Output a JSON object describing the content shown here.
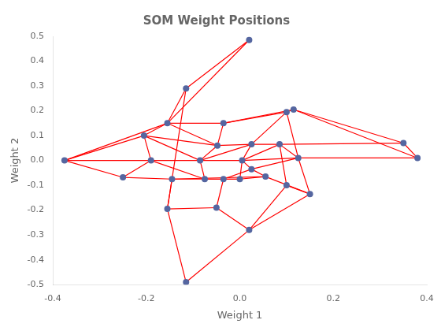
{
  "chart_data": {
    "type": "network",
    "title": "SOM Weight Positions",
    "xlabel": "Weight 1",
    "ylabel": "Weight 2",
    "xlim": [
      -0.4,
      0.4
    ],
    "ylim": [
      -0.5,
      0.5
    ],
    "xticks": [
      -0.4,
      -0.2,
      {
        "value": 0.0,
        "label": "0.0"
      },
      0.2,
      0.4
    ],
    "yticks": [
      -0.5,
      -0.4,
      -0.3,
      -0.2,
      -0.1,
      {
        "value": 0.0,
        "label": "0.0"
      },
      0.1,
      0.2,
      0.3,
      0.4,
      0.5
    ],
    "grid": false,
    "series": [
      {
        "type": "line",
        "color": "red",
        "line_style": "solid",
        "connections": [
          [
            0,
            1
          ],
          [
            0,
            2
          ],
          [
            0,
            3
          ],
          [
            0,
            4
          ],
          [
            1,
            2
          ],
          [
            1,
            5
          ],
          [
            2,
            3
          ],
          [
            2,
            6
          ],
          [
            2,
            7
          ],
          [
            3,
            4
          ],
          [
            3,
            7
          ],
          [
            3,
            8
          ],
          [
            4,
            8
          ],
          [
            4,
            9
          ],
          [
            4,
            24
          ],
          [
            4,
            25
          ],
          [
            5,
            6
          ],
          [
            5,
            15
          ],
          [
            5,
            26
          ],
          [
            6,
            7
          ],
          [
            6,
            10
          ],
          [
            6,
            11
          ],
          [
            7,
            8
          ],
          [
            7,
            12
          ],
          [
            7,
            13
          ],
          [
            8,
            9
          ],
          [
            8,
            13
          ],
          [
            9,
            18
          ],
          [
            9,
            19
          ],
          [
            10,
            11
          ],
          [
            10,
            14
          ],
          [
            10,
            27
          ],
          [
            11,
            12
          ],
          [
            11,
            15
          ],
          [
            12,
            13
          ],
          [
            12,
            14
          ],
          [
            12,
            16
          ],
          [
            12,
            20
          ],
          [
            13,
            16
          ],
          [
            13,
            18
          ],
          [
            14,
            15
          ],
          [
            14,
            20
          ],
          [
            15,
            21
          ],
          [
            16,
            17
          ],
          [
            16,
            20
          ],
          [
            16,
            22
          ],
          [
            17,
            21
          ],
          [
            17,
            28
          ],
          [
            18,
            19
          ],
          [
            18,
            20
          ],
          [
            19,
            22
          ],
          [
            19,
            23
          ],
          [
            20,
            21
          ],
          [
            20,
            23
          ],
          [
            21,
            28
          ],
          [
            22,
            23
          ],
          [
            24,
            25
          ],
          [
            25,
            26
          ],
          [
            26,
            27
          ],
          [
            26,
            29
          ],
          [
            27,
            28
          ],
          [
            28,
            29
          ]
        ]
      },
      {
        "type": "scatter",
        "color": "#5566a0",
        "marker": "circle",
        "points": [
          [
            -0.375,
            0.0
          ],
          [
            -0.25,
            -0.068
          ],
          [
            -0.19,
            0.0
          ],
          [
            -0.205,
            0.1
          ],
          [
            -0.155,
            0.15
          ],
          [
            -0.145,
            -0.075
          ],
          [
            -0.075,
            -0.075
          ],
          [
            -0.085,
            0.0
          ],
          [
            -0.048,
            0.06
          ],
          [
            -0.035,
            0.15
          ],
          [
            -0.035,
            -0.075
          ],
          [
            0.0,
            -0.075
          ],
          [
            0.005,
            0.0
          ],
          [
            0.025,
            0.065
          ],
          [
            0.025,
            -0.035
          ],
          [
            0.055,
            -0.065
          ],
          [
            0.085,
            0.065
          ],
          [
            0.1,
            -0.1
          ],
          [
            0.1,
            0.195
          ],
          [
            0.115,
            0.205
          ],
          [
            0.125,
            0.01
          ],
          [
            0.15,
            -0.135
          ],
          [
            0.35,
            0.07
          ],
          [
            0.38,
            0.01
          ],
          [
            0.02,
            0.485
          ],
          [
            -0.115,
            0.29
          ],
          [
            -0.155,
            -0.195
          ],
          [
            -0.05,
            -0.19
          ],
          [
            0.02,
            -0.28
          ],
          [
            -0.115,
            -0.49
          ]
        ]
      }
    ]
  }
}
